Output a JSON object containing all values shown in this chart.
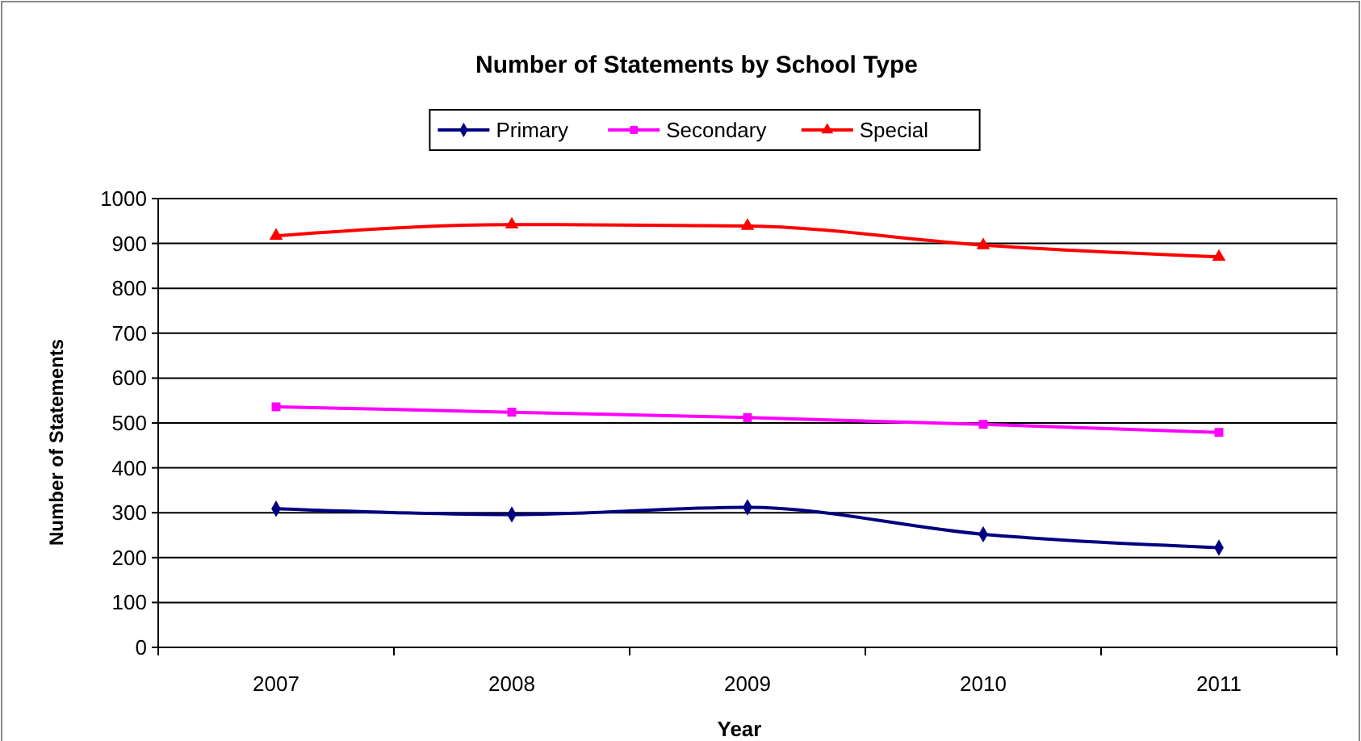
{
  "chart_data": {
    "type": "line",
    "title": "Number of Statements by School Type",
    "xlabel": "Year",
    "ylabel": "Number of Statements",
    "categories": [
      "2007",
      "2008",
      "2009",
      "2010",
      "2011"
    ],
    "series": [
      {
        "name": "Primary",
        "color": "#000080",
        "marker": "diamond",
        "values": [
          309,
          296,
          312,
          252,
          222
        ]
      },
      {
        "name": "Secondary",
        "color": "#ff00ff",
        "marker": "square",
        "values": [
          536,
          524,
          512,
          497,
          479
        ]
      },
      {
        "name": "Special",
        "color": "#ff0000",
        "marker": "triangle",
        "values": [
          917,
          942,
          939,
          896,
          870
        ]
      }
    ],
    "ylim": [
      0,
      1000
    ],
    "yticks": [
      0,
      100,
      200,
      300,
      400,
      500,
      600,
      700,
      800,
      900,
      1000
    ],
    "grid": "y",
    "legend": "top",
    "line_style": "solid"
  }
}
